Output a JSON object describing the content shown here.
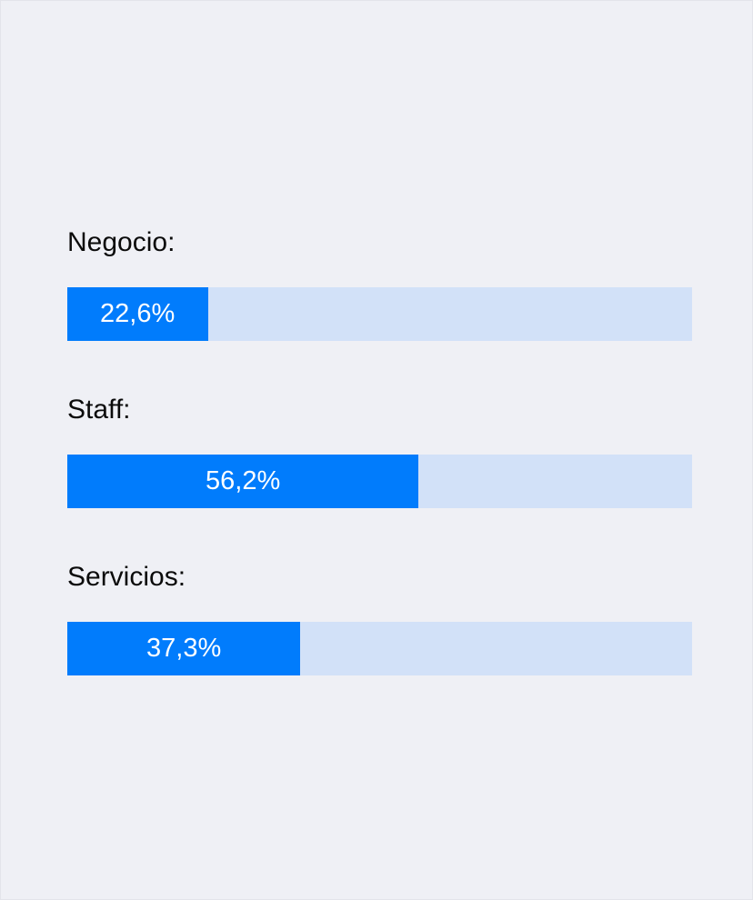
{
  "colors": {
    "background": "#eff0f5",
    "bar_fill": "#017cfc",
    "bar_track": "#d2e1f8",
    "label_text": "#0b0b0b",
    "value_text": "#ffffff"
  },
  "chart_data": {
    "type": "bar",
    "orientation": "horizontal",
    "categories": [
      "Negocio:",
      "Staff:",
      "Servicios:"
    ],
    "values": [
      22.6,
      56.2,
      37.3
    ],
    "value_labels": [
      "22,6%",
      "56,2%",
      "37,3%"
    ],
    "xlim": [
      0,
      100
    ],
    "grid": false,
    "legend": "none"
  }
}
